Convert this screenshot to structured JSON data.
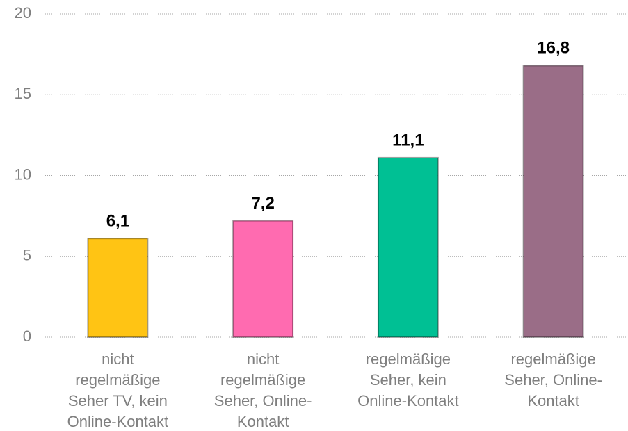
{
  "chart_data": {
    "type": "bar",
    "categories": [
      [
        "nicht",
        "regelmäßige",
        "Seher TV, kein",
        "Online-Kontakt"
      ],
      [
        "nicht",
        "regelmäßige",
        "Seher, Online-",
        "Kontakt"
      ],
      [
        "regelmäßige",
        "Seher, kein",
        "Online-Kontakt"
      ],
      [
        "regelmäßige",
        "Seher, Online-",
        "Kontakt"
      ]
    ],
    "values": [
      6.1,
      7.2,
      11.1,
      16.8
    ],
    "value_labels": [
      "6,1",
      "7,2",
      "11,1",
      "16,8"
    ],
    "colors": [
      "#ffc414",
      "#ff6bb0",
      "#00c094",
      "#9a6d87"
    ],
    "ylim": [
      0,
      20
    ],
    "yticks": [
      0,
      5,
      10,
      15,
      20
    ],
    "grid": true
  }
}
